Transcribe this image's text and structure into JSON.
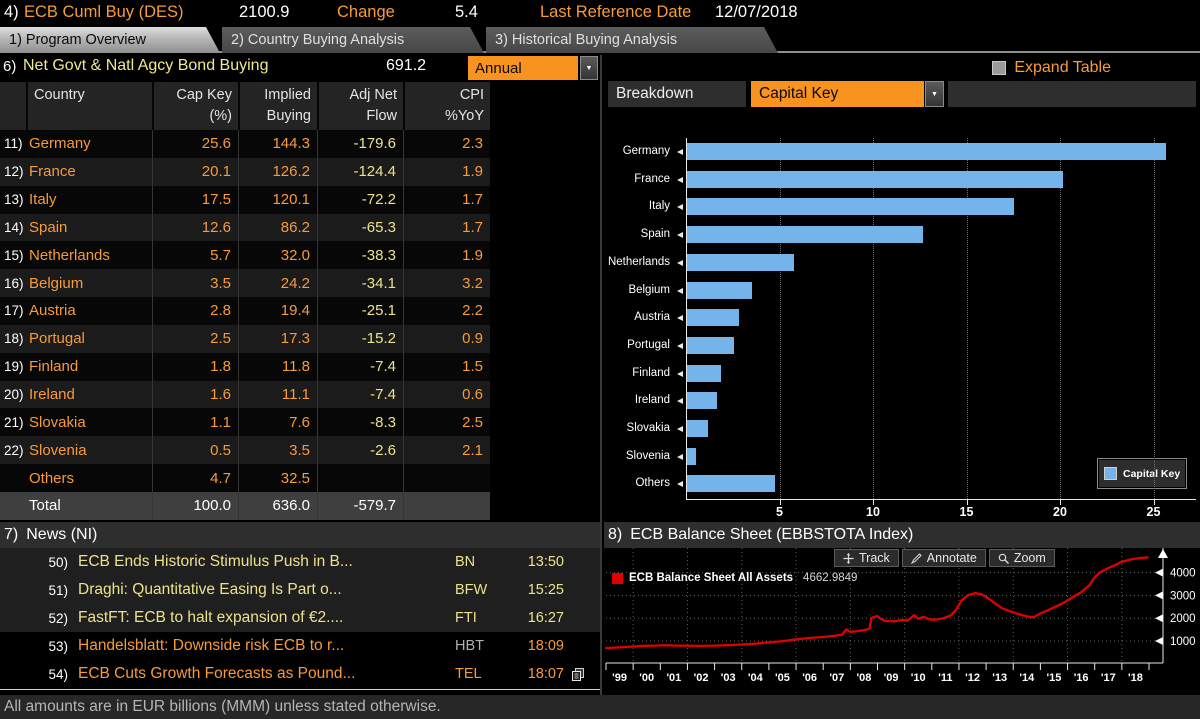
{
  "colors": {
    "orange": "#f89b38",
    "yellow": "#ece28b",
    "white": "#ffffff",
    "gray": "#b0b0b0",
    "bar_blue": "#75b4ea",
    "line_red": "#e00000",
    "dropdown_orange": "#f7931e"
  },
  "topbar": {
    "id": "4)",
    "title": "ECB Cuml Buy (DES)",
    "value": "2100.9",
    "change_label": "Change",
    "change_value": "5.4",
    "ref_label": "Last Reference Date",
    "ref_date": "12/07/2018"
  },
  "tabs": [
    {
      "label": "1) Program Overview",
      "active": true
    },
    {
      "label": "2) Country Buying Analysis",
      "active": false
    },
    {
      "label": "3) Historical Buying Analysis",
      "active": false
    }
  ],
  "left_panel": {
    "id": "6)",
    "title": "Net Govt & Natl Agcy Bond Buying",
    "value": "691.2",
    "period": "Annual",
    "table": {
      "headers": [
        {
          "l1": "Country",
          "l2": ""
        },
        {
          "l1": "Cap Key",
          "l2": "(%)"
        },
        {
          "l1": "Implied",
          "l2": "Buying"
        },
        {
          "l1": "Adj Net",
          "l2": "Flow"
        },
        {
          "l1": "CPI",
          "l2": "%YoY"
        }
      ],
      "rows": [
        {
          "num": "11)",
          "country": "Germany",
          "cap_key": "25.6",
          "implied_buying": "144.3",
          "adj_net_flow": "-179.6",
          "cpi_yoy": "2.3"
        },
        {
          "num": "12)",
          "country": "France",
          "cap_key": "20.1",
          "implied_buying": "126.2",
          "adj_net_flow": "-124.4",
          "cpi_yoy": "1.9"
        },
        {
          "num": "13)",
          "country": "Italy",
          "cap_key": "17.5",
          "implied_buying": "120.1",
          "adj_net_flow": "-72.2",
          "cpi_yoy": "1.7"
        },
        {
          "num": "14)",
          "country": "Spain",
          "cap_key": "12.6",
          "implied_buying": "86.2",
          "adj_net_flow": "-65.3",
          "cpi_yoy": "1.7"
        },
        {
          "num": "15)",
          "country": "Netherlands",
          "cap_key": "5.7",
          "implied_buying": "32.0",
          "adj_net_flow": "-38.3",
          "cpi_yoy": "1.9"
        },
        {
          "num": "16)",
          "country": "Belgium",
          "cap_key": "3.5",
          "implied_buying": "24.2",
          "adj_net_flow": "-34.1",
          "cpi_yoy": "3.2"
        },
        {
          "num": "17)",
          "country": "Austria",
          "cap_key": "2.8",
          "implied_buying": "19.4",
          "adj_net_flow": "-25.1",
          "cpi_yoy": "2.2"
        },
        {
          "num": "18)",
          "country": "Portugal",
          "cap_key": "2.5",
          "implied_buying": "17.3",
          "adj_net_flow": "-15.2",
          "cpi_yoy": "0.9"
        },
        {
          "num": "19)",
          "country": "Finland",
          "cap_key": "1.8",
          "implied_buying": "11.8",
          "adj_net_flow": "-7.4",
          "cpi_yoy": "1.5"
        },
        {
          "num": "20)",
          "country": "Ireland",
          "cap_key": "1.6",
          "implied_buying": "11.1",
          "adj_net_flow": "-7.4",
          "cpi_yoy": "0.6"
        },
        {
          "num": "21)",
          "country": "Slovakia",
          "cap_key": "1.1",
          "implied_buying": "7.6",
          "adj_net_flow": "-8.3",
          "cpi_yoy": "2.5"
        },
        {
          "num": "22)",
          "country": "Slovenia",
          "cap_key": "0.5",
          "implied_buying": "3.5",
          "adj_net_flow": "-2.6",
          "cpi_yoy": "2.1"
        },
        {
          "num": "",
          "country": "Others",
          "cap_key": "4.7",
          "implied_buying": "32.5",
          "adj_net_flow": "",
          "cpi_yoy": ""
        },
        {
          "num": "",
          "country": "Total",
          "cap_key": "100.0",
          "implied_buying": "636.0",
          "adj_net_flow": "-579.7",
          "cpi_yoy": "",
          "total": true
        }
      ]
    }
  },
  "right_panel": {
    "expand_label": "Expand Table",
    "breakdown_label": "Breakdown",
    "breakdown_value": "Capital Key",
    "chart_data": {
      "type": "bar",
      "orientation": "horizontal",
      "legend": "Capital Key",
      "bar_color": "#75b4ea",
      "categories": [
        "Germany",
        "France",
        "Italy",
        "Spain",
        "Netherlands",
        "Belgium",
        "Austria",
        "Portugal",
        "Finland",
        "Ireland",
        "Slovakia",
        "Slovenia",
        "Others"
      ],
      "values": [
        25.6,
        20.1,
        17.5,
        12.6,
        5.7,
        3.5,
        2.8,
        2.5,
        1.8,
        1.6,
        1.1,
        0.5,
        4.7
      ],
      "xticks": [
        5,
        10,
        15,
        20,
        25
      ],
      "xlim": [
        0,
        27.3
      ],
      "grid": "dotted-vertical"
    }
  },
  "news": {
    "id": "7)",
    "title": "News (NI)",
    "items": [
      {
        "num": "50)",
        "headline": "ECB Ends Historic Stimulus Push in B...",
        "source": "BN",
        "time": "13:50",
        "headline_color": "yellow",
        "source_color": "yellow",
        "time_color": "yellow",
        "highlighted": true,
        "has_more_icon": false
      },
      {
        "num": "51)",
        "headline": "Draghi: Quantitative Easing Is Part o...",
        "source": "BFW",
        "time": "15:25",
        "headline_color": "yellow",
        "source_color": "yellow",
        "time_color": "yellow",
        "highlighted": true,
        "has_more_icon": false
      },
      {
        "num": "52)",
        "headline": "FastFT: ECB to halt expansion of €2....",
        "source": "FTI",
        "time": "16:27",
        "headline_color": "yellow",
        "source_color": "yellow",
        "time_color": "yellow",
        "highlighted": true,
        "has_more_icon": false
      },
      {
        "num": "53)",
        "headline": "Handelsblatt: Downside risk ECB to r...",
        "source": "HBT",
        "time": "18:09",
        "headline_color": "orange",
        "source_color": "gray",
        "time_color": "orange",
        "highlighted": false,
        "has_more_icon": false
      },
      {
        "num": "54)",
        "headline": "ECB Cuts Growth Forecasts as Pound...",
        "source": "TEL",
        "time": "18:07",
        "headline_color": "orange",
        "source_color": "orange",
        "time_color": "orange",
        "highlighted": false,
        "has_more_icon": true
      }
    ]
  },
  "ecb": {
    "id": "8)",
    "title": "ECB Balance Sheet (EBBSTOTA Index)",
    "toolbar": [
      "Track",
      "Annotate",
      "Zoom"
    ],
    "legend_label": "ECB Balance Sheet All Assets",
    "legend_value": "4662.9849",
    "chart_data": {
      "type": "line",
      "title": "ECB Balance Sheet (EBBSTOTA Index)",
      "ylabel": "",
      "yticks": [
        1000,
        2000,
        3000,
        4000
      ],
      "ylim": [
        150,
        5050
      ],
      "x_range": [
        1999,
        2019
      ],
      "x_tick_labels": [
        "'99",
        "'00",
        "'01",
        "'02",
        "'03",
        "'04",
        "'05",
        "'06",
        "'07",
        "'08",
        "'09",
        "'10",
        "'11",
        "'12",
        "'13",
        "'14",
        "'15",
        "'16",
        "'17",
        "'18"
      ],
      "grid": "dotted",
      "legend_position": "top-left",
      "series": [
        {
          "name": "ECB Balance Sheet All Assets",
          "color": "#e00000",
          "last_value": 4662.9849,
          "points": [
            [
              1999.0,
              690
            ],
            [
              1999.3,
              710
            ],
            [
              1999.6,
              730
            ],
            [
              2000.0,
              760
            ],
            [
              2000.4,
              790
            ],
            [
              2000.8,
              800
            ],
            [
              2001.2,
              815
            ],
            [
              2001.6,
              800
            ],
            [
              2002.0,
              795
            ],
            [
              2002.5,
              785
            ],
            [
              2003.0,
              800
            ],
            [
              2003.5,
              815
            ],
            [
              2004.0,
              845
            ],
            [
              2004.5,
              880
            ],
            [
              2005.0,
              940
            ],
            [
              2005.5,
              990
            ],
            [
              2006.0,
              1070
            ],
            [
              2006.5,
              1130
            ],
            [
              2007.0,
              1180
            ],
            [
              2007.4,
              1230
            ],
            [
              2007.7,
              1280
            ],
            [
              2007.85,
              1510
            ],
            [
              2008.0,
              1400
            ],
            [
              2008.2,
              1420
            ],
            [
              2008.5,
              1480
            ],
            [
              2008.7,
              1530
            ],
            [
              2008.78,
              2010
            ],
            [
              2008.9,
              2060
            ],
            [
              2009.0,
              2090
            ],
            [
              2009.15,
              1950
            ],
            [
              2009.3,
              1880
            ],
            [
              2009.6,
              1860
            ],
            [
              2009.9,
              1920
            ],
            [
              2010.1,
              1890
            ],
            [
              2010.35,
              2130
            ],
            [
              2010.5,
              1980
            ],
            [
              2010.7,
              2060
            ],
            [
              2010.9,
              1950
            ],
            [
              2011.1,
              1930
            ],
            [
              2011.4,
              1990
            ],
            [
              2011.7,
              2120
            ],
            [
              2011.9,
              2380
            ],
            [
              2012.1,
              2780
            ],
            [
              2012.35,
              3020
            ],
            [
              2012.6,
              3100
            ],
            [
              2012.8,
              3060
            ],
            [
              2013.0,
              2940
            ],
            [
              2013.3,
              2680
            ],
            [
              2013.6,
              2430
            ],
            [
              2013.9,
              2300
            ],
            [
              2014.2,
              2180
            ],
            [
              2014.5,
              2080
            ],
            [
              2014.75,
              2040
            ],
            [
              2015.0,
              2210
            ],
            [
              2015.3,
              2360
            ],
            [
              2015.6,
              2530
            ],
            [
              2015.9,
              2700
            ],
            [
              2016.2,
              2930
            ],
            [
              2016.5,
              3140
            ],
            [
              2016.8,
              3440
            ],
            [
              2017.0,
              3790
            ],
            [
              2017.2,
              4020
            ],
            [
              2017.5,
              4200
            ],
            [
              2017.8,
              4360
            ],
            [
              2018.0,
              4480
            ],
            [
              2018.3,
              4570
            ],
            [
              2018.6,
              4630
            ],
            [
              2018.95,
              4663
            ]
          ]
        }
      ]
    }
  },
  "footer": "All amounts are in EUR billions (MMM) unless stated otherwise."
}
